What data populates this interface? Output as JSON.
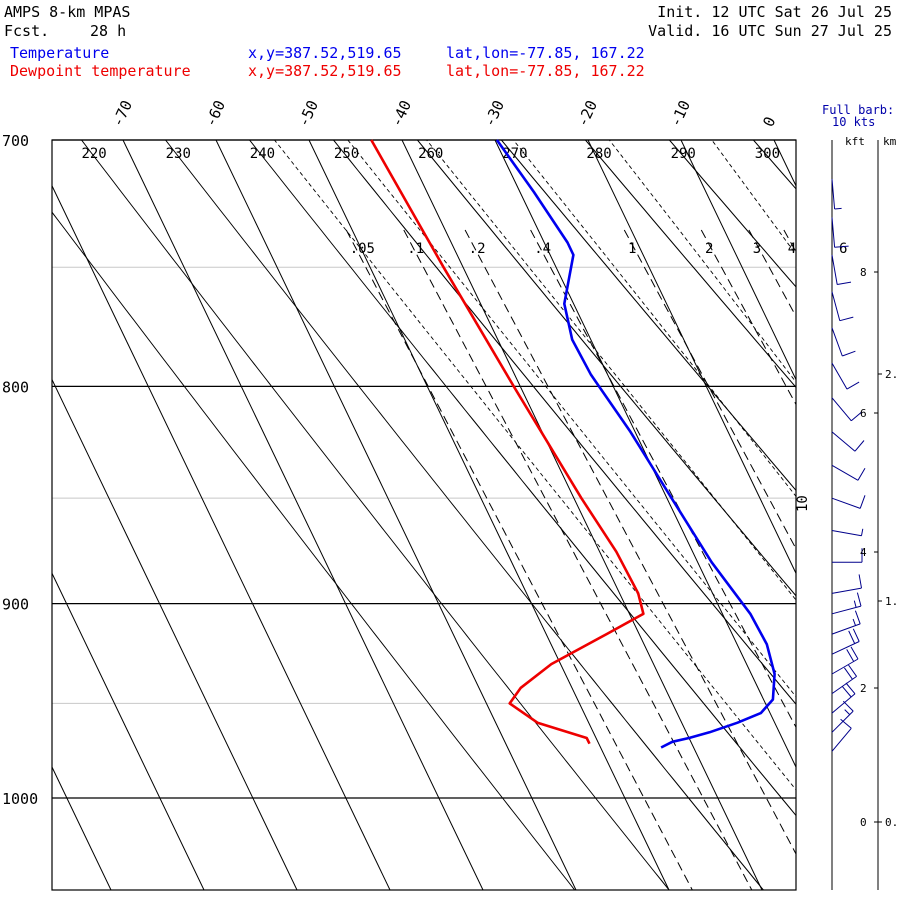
{
  "header": {
    "model": "AMPS 8-km MPAS",
    "fcst_label": "Fcst.",
    "fcst_value": "28 h",
    "init": "Init. 12 UTC Sat 26 Jul 25",
    "valid": "Valid. 16 UTC Sun 27 Jul 25",
    "temp_label": "Temperature",
    "temp_xy": "x,y=387.52,519.65",
    "temp_latlon": "lat,lon=-77.85, 167.22",
    "dew_label": "Dewpoint temperature",
    "dew_xy": "x,y=387.52,519.65",
    "dew_latlon": "lat,lon=-77.85, 167.22"
  },
  "barb_legend": {
    "line1": "Full barb:",
    "line2": "10 kts"
  },
  "height_axis": {
    "kft_label": "kft",
    "km_label": "km"
  },
  "colors": {
    "temperature": "#0000ee",
    "dewpoint": "#ee0000",
    "background": "#ffffff"
  },
  "chart_data": {
    "type": "line",
    "diagram": "skew-T log-p",
    "y_axis": {
      "quantity": "pressure",
      "unit": "hPa",
      "range": [
        1045,
        700
      ],
      "scale": "log",
      "ticks": [
        700,
        800,
        900,
        1000
      ]
    },
    "x_axis": {
      "quantity": "temperature",
      "unit": "C",
      "ticks": [
        -70,
        -60,
        -50,
        -40,
        -30,
        -20,
        -10,
        0
      ]
    },
    "dry_adiabat_labels": [
      "220",
      "230",
      "240",
      "250",
      "260",
      "270",
      "280",
      "290",
      "300"
    ],
    "mixing_ratio_labels": [
      ".05",
      ".1",
      ".2",
      ".4",
      "1",
      "2",
      "3",
      "4",
      "6"
    ],
    "moist_adiabat_label": "10",
    "kft_ticks": [
      "0",
      "2",
      "4",
      "6",
      "8"
    ],
    "km_ticks": [
      "0.",
      "1.",
      "2."
    ],
    "series": [
      {
        "name": "Temperature",
        "color": "#0000ee",
        "points": [
          {
            "p": 973,
            "t": -43.5
          },
          {
            "p": 970,
            "t": -42
          },
          {
            "p": 968,
            "t": -40
          },
          {
            "p": 965,
            "t": -37.5
          },
          {
            "p": 960,
            "t": -34
          },
          {
            "p": 955,
            "t": -31
          },
          {
            "p": 948,
            "t": -29
          },
          {
            "p": 935,
            "t": -27.5
          },
          {
            "p": 920,
            "t": -26.8
          },
          {
            "p": 905,
            "t": -27
          },
          {
            "p": 880,
            "t": -28.5
          },
          {
            "p": 850,
            "t": -29.5
          },
          {
            "p": 820,
            "t": -30.5
          },
          {
            "p": 795,
            "t": -31.8
          },
          {
            "p": 780,
            "t": -32
          },
          {
            "p": 765,
            "t": -31
          },
          {
            "p": 745,
            "t": -27.5
          },
          {
            "p": 740,
            "t": -27.5
          },
          {
            "p": 720,
            "t": -28.5
          },
          {
            "p": 700,
            "t": -29.8
          }
        ]
      },
      {
        "name": "Dewpoint temperature",
        "color": "#ee0000",
        "points": [
          {
            "p": 971,
            "t": -51
          },
          {
            "p": 968,
            "t": -51
          },
          {
            "p": 960,
            "t": -55.5
          },
          {
            "p": 950,
            "t": -57.5
          },
          {
            "p": 942,
            "t": -55.5
          },
          {
            "p": 930,
            "t": -51
          },
          {
            "p": 915,
            "t": -43.5
          },
          {
            "p": 905,
            "t": -38.5
          },
          {
            "p": 895,
            "t": -38
          },
          {
            "p": 875,
            "t": -38.2
          },
          {
            "p": 850,
            "t": -39.2
          },
          {
            "p": 800,
            "t": -40.7
          },
          {
            "p": 750,
            "t": -42.1
          },
          {
            "p": 700,
            "t": -43.3
          }
        ]
      }
    ],
    "wind_profile": [
      {
        "p": 975,
        "dir": 40,
        "speed": 10
      },
      {
        "p": 965,
        "dir": 45,
        "speed": 15
      },
      {
        "p": 955,
        "dir": 50,
        "speed": 20
      },
      {
        "p": 945,
        "dir": 55,
        "speed": 20
      },
      {
        "p": 935,
        "dir": 60,
        "speed": 20
      },
      {
        "p": 925,
        "dir": 65,
        "speed": 20
      },
      {
        "p": 915,
        "dir": 70,
        "speed": 15
      },
      {
        "p": 905,
        "dir": 75,
        "speed": 15
      },
      {
        "p": 895,
        "dir": 80,
        "speed": 10
      },
      {
        "p": 880,
        "dir": 90,
        "speed": 10
      },
      {
        "p": 865,
        "dir": 100,
        "speed": 5
      },
      {
        "p": 850,
        "dir": 110,
        "speed": 10
      },
      {
        "p": 835,
        "dir": 120,
        "speed": 10
      },
      {
        "p": 820,
        "dir": 130,
        "speed": 10
      },
      {
        "p": 805,
        "dir": 140,
        "speed": 10
      },
      {
        "p": 790,
        "dir": 150,
        "speed": 10
      },
      {
        "p": 775,
        "dir": 160,
        "speed": 10
      },
      {
        "p": 760,
        "dir": 165,
        "speed": 10
      },
      {
        "p": 745,
        "dir": 170,
        "speed": 10
      },
      {
        "p": 730,
        "dir": 175,
        "speed": 10
      },
      {
        "p": 715,
        "dir": 175,
        "speed": 5
      }
    ]
  }
}
